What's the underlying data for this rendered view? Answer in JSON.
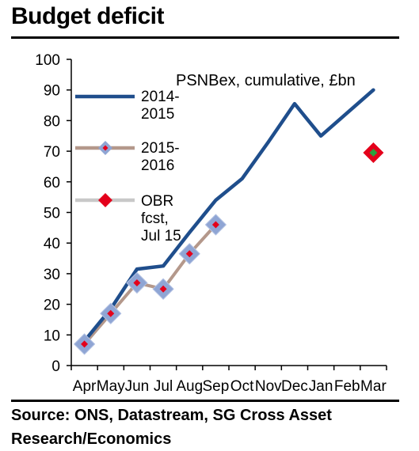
{
  "title": "Budget deficit",
  "source": "Source: ONS, Datastream, SG Cross Asset Research/Economics",
  "chart_data": {
    "type": "line",
    "title": "Budget deficit",
    "annotation": "PSNBex, cumulative, £bn",
    "categories": [
      "Apr",
      "May",
      "Jun",
      "Jul",
      "Aug",
      "Sep",
      "Oct",
      "Nov",
      "Dec",
      "Jan",
      "Feb",
      "Mar"
    ],
    "ylim": [
      0,
      100
    ],
    "yticks": [
      "0",
      "10",
      "20",
      "30",
      "40",
      "50",
      "60",
      "70",
      "80",
      "90",
      "100"
    ],
    "legend_position": "left",
    "series": [
      {
        "name": "2014-2015",
        "color": "#1f4e8c",
        "style": "line",
        "values": [
          8,
          18.5,
          31.5,
          32.5,
          43.5,
          54,
          61,
          73,
          85.5,
          75,
          82.5,
          90
        ]
      },
      {
        "name": "2015-2016",
        "color": "#b4988b",
        "marker_color": "#8fa5d4",
        "marker_center": "#e4001b",
        "style": "line-diamond",
        "values": [
          7,
          17,
          27,
          25,
          36.5,
          46,
          null,
          null,
          null,
          null,
          null,
          null
        ]
      },
      {
        "name": "OBR fcst, Jul 15",
        "color": "#e4001b",
        "marker_center": "#2aa13c",
        "style": "diamond",
        "values": [
          null,
          null,
          null,
          null,
          null,
          null,
          null,
          null,
          null,
          null,
          null,
          69.5
        ]
      }
    ]
  }
}
